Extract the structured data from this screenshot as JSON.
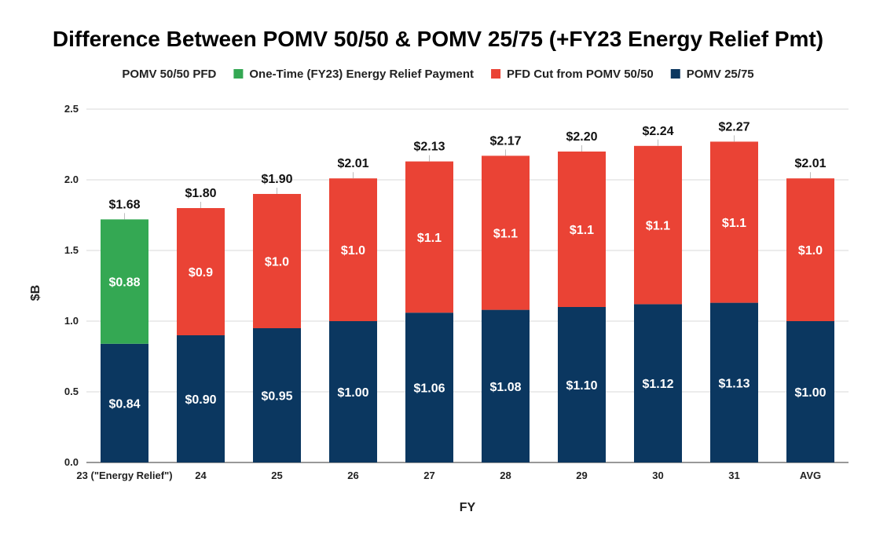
{
  "chart_data": {
    "type": "bar",
    "stacked": true,
    "title": "Difference Between POMV 50/50 & POMV 25/75 (+FY23 Energy Relief Pmt)",
    "xlabel": "FY",
    "ylabel": "$B",
    "ylim": [
      0,
      2.5
    ],
    "yticks": [
      "0.0",
      "0.5",
      "1.0",
      "1.5",
      "2.0",
      "2.5"
    ],
    "grid": true,
    "legend_position": "top",
    "legend": [
      {
        "name": "POMV 50/50 PFD",
        "color": null
      },
      {
        "name": "One-Time (FY23) Energy Relief Payment",
        "color": "#34a853"
      },
      {
        "name": "PFD Cut from POMV 50/50",
        "color": "#ea4335"
      },
      {
        "name": "POMV 25/75",
        "color": "#0b3760"
      }
    ],
    "categories": [
      "23 (\"Energy Relief\")",
      "24",
      "25",
      "26",
      "27",
      "28",
      "29",
      "30",
      "31",
      "AVG"
    ],
    "series": [
      {
        "name": "POMV 25/75",
        "color": "#0b3760",
        "values": [
          0.84,
          0.9,
          0.95,
          1.0,
          1.06,
          1.08,
          1.1,
          1.12,
          1.13,
          1.0
        ],
        "labels": [
          "$0.84",
          "$0.90",
          "$0.95",
          "$1.00",
          "$1.06",
          "$1.08",
          "$1.10",
          "$1.12",
          "$1.13",
          "$1.00"
        ]
      },
      {
        "name": "One-Time (FY23) Energy Relief Payment",
        "color": "#34a853",
        "values": [
          0.88,
          0,
          0,
          0,
          0,
          0,
          0,
          0,
          0,
          0
        ],
        "labels": [
          "$0.88",
          "",
          "",
          "",
          "",
          "",
          "",
          "",
          "",
          ""
        ]
      },
      {
        "name": "PFD Cut from POMV 50/50",
        "color": "#ea4335",
        "values": [
          0,
          0.9,
          0.95,
          1.01,
          1.07,
          1.09,
          1.1,
          1.12,
          1.14,
          1.01
        ],
        "labels": [
          "",
          "$0.9",
          "$1.0",
          "$1.0",
          "$1.1",
          "$1.1",
          "$1.1",
          "$1.1",
          "$1.1",
          "$1.0"
        ]
      }
    ],
    "totals": [
      "$1.68",
      "$1.80",
      "$1.90",
      "$2.01",
      "$2.13",
      "$2.17",
      "$2.20",
      "$2.24",
      "$2.27",
      "$2.01"
    ]
  }
}
